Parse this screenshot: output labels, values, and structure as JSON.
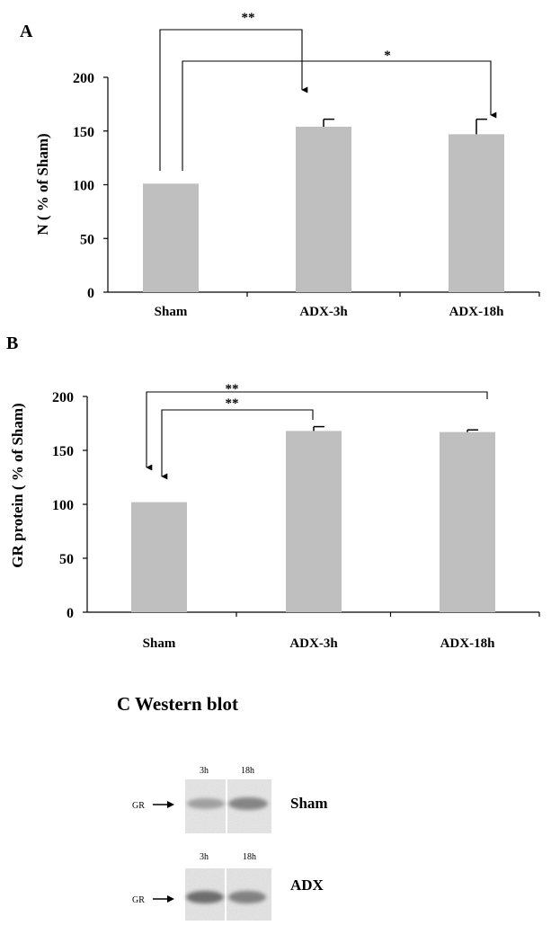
{
  "chart_data": [
    {
      "type": "bar",
      "panel_label": "A",
      "ylabel": "N ( % of Sham)",
      "categories": [
        "Sham",
        "ADX-3h",
        "ADX-18h"
      ],
      "values": [
        101,
        154,
        147
      ],
      "error_plus": [
        0,
        7,
        14
      ],
      "ylim": [
        0,
        200
      ],
      "yticks": [
        "0",
        "50",
        "100",
        "150",
        "200"
      ],
      "bar_color": "#bfbfbf",
      "significance": [
        {
          "label": "**",
          "from": "Sham",
          "to": "ADX-3h"
        },
        {
          "label": "*",
          "from": "Sham",
          "to": "ADX-18h"
        }
      ]
    },
    {
      "type": "bar",
      "panel_label": "B",
      "ylabel": "GR protein ( % of Sham)",
      "categories": [
        "Sham",
        "ADX-3h",
        "ADX-18h"
      ],
      "values": [
        102,
        168,
        167
      ],
      "error_plus": [
        0,
        4,
        2
      ],
      "ylim": [
        0,
        200
      ],
      "yticks": [
        "0",
        "50",
        "100",
        "150",
        "200"
      ],
      "bar_color": "#bfbfbf",
      "significance": [
        {
          "label": "**",
          "from": "ADX-18h",
          "to": "Sham"
        },
        {
          "label": "**",
          "from": "ADX-3h",
          "to": "Sham"
        }
      ]
    }
  ],
  "western_blot": {
    "title": "C  Western blot",
    "marker": "GR",
    "rows": [
      {
        "condition": "Sham",
        "lanes": [
          "3h",
          "18h"
        ]
      },
      {
        "condition": "ADX",
        "lanes": [
          "3h",
          "18h"
        ]
      }
    ]
  }
}
